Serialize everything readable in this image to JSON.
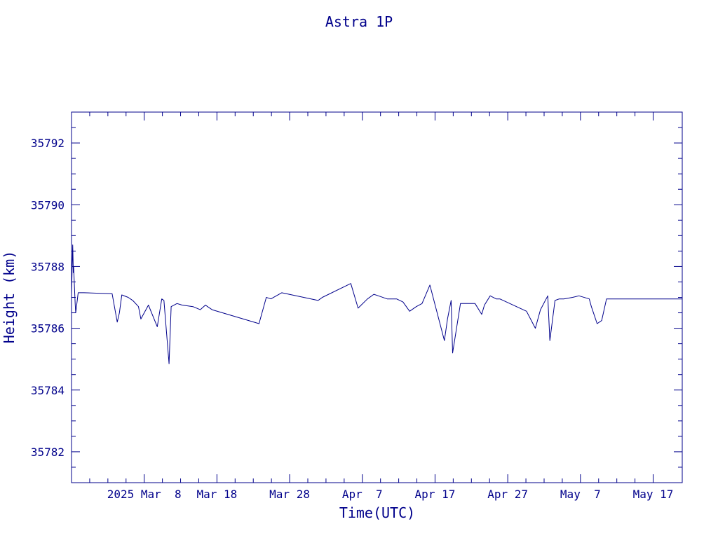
{
  "chart_data": {
    "type": "line",
    "title": "Astra 1P",
    "xlabel": "Time(UTC)",
    "ylabel": "Height (km)",
    "color": "#00008b",
    "grid": false,
    "legend": "none",
    "xlim": [
      "2025-02-26",
      "2025-05-21"
    ],
    "ylim": [
      35781.0,
      35793.0
    ],
    "x_ticks": [
      {
        "date": "2025-02-26"
      },
      {
        "date": "2025-03-08",
        "label": "2025 Mar  8"
      },
      {
        "date": "2025-03-18",
        "label": "Mar 18"
      },
      {
        "date": "2025-03-28",
        "label": "Mar 28"
      },
      {
        "date": "2025-04-07",
        "label": "Apr  7"
      },
      {
        "date": "2025-04-17",
        "label": "Apr 17"
      },
      {
        "date": "2025-04-27",
        "label": "Apr 27"
      },
      {
        "date": "2025-05-07",
        "label": "May  7"
      },
      {
        "date": "2025-05-17",
        "label": "May 17"
      }
    ],
    "y_ticks": [
      35782,
      35784,
      35786,
      35788,
      35790,
      35792
    ],
    "series": [
      {
        "x": [
          "2025-02-26 00:00",
          "2025-02-26 04:00",
          "2025-02-26 06:00",
          "2025-02-26 07:00",
          "2025-02-26 09:00",
          "2025-02-26 12:00",
          "2025-02-26 14:00",
          "2025-02-26 22:00",
          "2025-02-27 02:00",
          "2025-02-27 06:00",
          "2025-02-27 17:00",
          "2025-03-03 10:00",
          "2025-03-03 14:00",
          "2025-03-04 07:00",
          "2025-03-04 14:00",
          "2025-03-04 22:00",
          "2025-03-05 19:00",
          "2025-03-06 10:00",
          "2025-03-07 05:00",
          "2025-03-07 13:00",
          "2025-03-08 14:00",
          "2025-03-09 19:00",
          "2025-03-10 10:00",
          "2025-03-10 17:00",
          "2025-03-11 10:00",
          "2025-03-11 17:00",
          "2025-03-12 12:00",
          "2025-03-13 05:00",
          "2025-03-14 17:00",
          "2025-03-15 17:00",
          "2025-03-16 10:00",
          "2025-03-16 17:00",
          "2025-03-17 08:00",
          "2025-03-23 19:00",
          "2025-03-24 19:00",
          "2025-03-25 10:00",
          "2025-03-26 22:00",
          "2025-03-31 22:00",
          "2025-04-01 05:00",
          "2025-04-01 12:00",
          "2025-04-05 10:00",
          "2025-04-06 10:00",
          "2025-04-07 17:00",
          "2025-04-08 14:00",
          "2025-04-09 05:00",
          "2025-04-10 10:00",
          "2025-04-11 17:00",
          "2025-04-12 14:00",
          "2025-04-13 12:00",
          "2025-04-14 10:00",
          "2025-04-15 05:00",
          "2025-04-16 07:00",
          "2025-04-18 07:00",
          "2025-04-18 17:00",
          "2025-04-19 05:00",
          "2025-04-19 10:00",
          "2025-04-20 12:00",
          "2025-04-21 19:00",
          "2025-04-22 12:00",
          "2025-04-23 10:00",
          "2025-04-23 19:00",
          "2025-04-24 14:00",
          "2025-04-25 10:00",
          "2025-04-25 22:00",
          "2025-04-29 14:00",
          "2025-04-30 19:00",
          "2025-05-01 12:00",
          "2025-05-02 12:00",
          "2025-05-02 19:00",
          "2025-05-03 12:00",
          "2025-05-04 02:00",
          "2025-05-04 17:00",
          "2025-05-05 22:00",
          "2025-05-06 19:00",
          "2025-05-08 05:00",
          "2025-05-08 12:00",
          "2025-05-09 07:00",
          "2025-05-09 22:00",
          "2025-05-10 14:00",
          "2025-05-11 02:00",
          "2025-05-11 17:00",
          "2025-05-11 22:00",
          "2025-05-12 17:00",
          "2025-05-13 05:00",
          "2025-05-13 10:00",
          "2025-05-13 14:00",
          "2025-05-14 02:00",
          "2025-05-14 07:00",
          "2025-05-14 12:00",
          "2025-05-15 02:00",
          "2025-05-15 14:00",
          "2025-05-15 19:00",
          "2025-05-16 00:00",
          "2025-05-16 05:00",
          "2025-05-16 12:00",
          "2025-05-17 00:00",
          "2025-05-17 12:00",
          "2025-05-18 00:00",
          "2025-05-18 12:00",
          "2025-05-19 00:00",
          "2025-05-19 12:00",
          "2025-05-20 00:00",
          "2025-05-20 12:00",
          "2025-05-21 00:00"
        ],
        "y": [
          35787.1,
          35788.7,
          35787.8,
          35788.0,
          35787.5,
          35786.8,
          35786.5,
          35787.15,
          35787.15,
          35787.15,
          35787.15,
          35787.12,
          35787.12,
          35786.2,
          35786.5,
          35787.08,
          35787.0,
          35786.9,
          35786.7,
          35786.3,
          35786.75,
          35786.05,
          35786.95,
          35786.9,
          35784.85,
          35786.7,
          35786.8,
          35786.75,
          35786.7,
          35786.6,
          35786.75,
          35786.7,
          35786.6,
          35786.15,
          35787.0,
          35786.95,
          35787.15,
          35786.9,
          35786.95,
          35787.0,
          35787.45,
          35786.65,
          35786.95,
          35787.1,
          35787.05,
          35786.95,
          35786.95,
          35786.85,
          35786.55,
          35786.7,
          35786.8,
          35787.4,
          35785.6,
          35786.3,
          35786.9,
          35785.2,
          35786.8,
          35786.8,
          35786.8,
          35786.45,
          35786.75,
          35787.05,
          35786.95,
          35786.95,
          35786.55,
          35786.0,
          35786.6,
          35787.05,
          35785.6,
          35786.9,
          35786.95,
          35786.95,
          35787.0,
          35787.05,
          35786.95,
          35786.7,
          35786.15,
          35786.25,
          35786.95,
          35786.95,
          35786.95,
          35786.95,
          35786.95,
          35786.95,
          35786.95,
          35786.95,
          35786.95,
          35786.95,
          35786.95,
          35786.95,
          35786.95,
          35786.95,
          35786.95,
          35786.95,
          35786.95,
          35786.95,
          35786.95,
          35786.95,
          35786.95,
          35786.95,
          35786.95,
          35786.95,
          35786.95,
          35786.95
        ]
      }
    ]
  }
}
